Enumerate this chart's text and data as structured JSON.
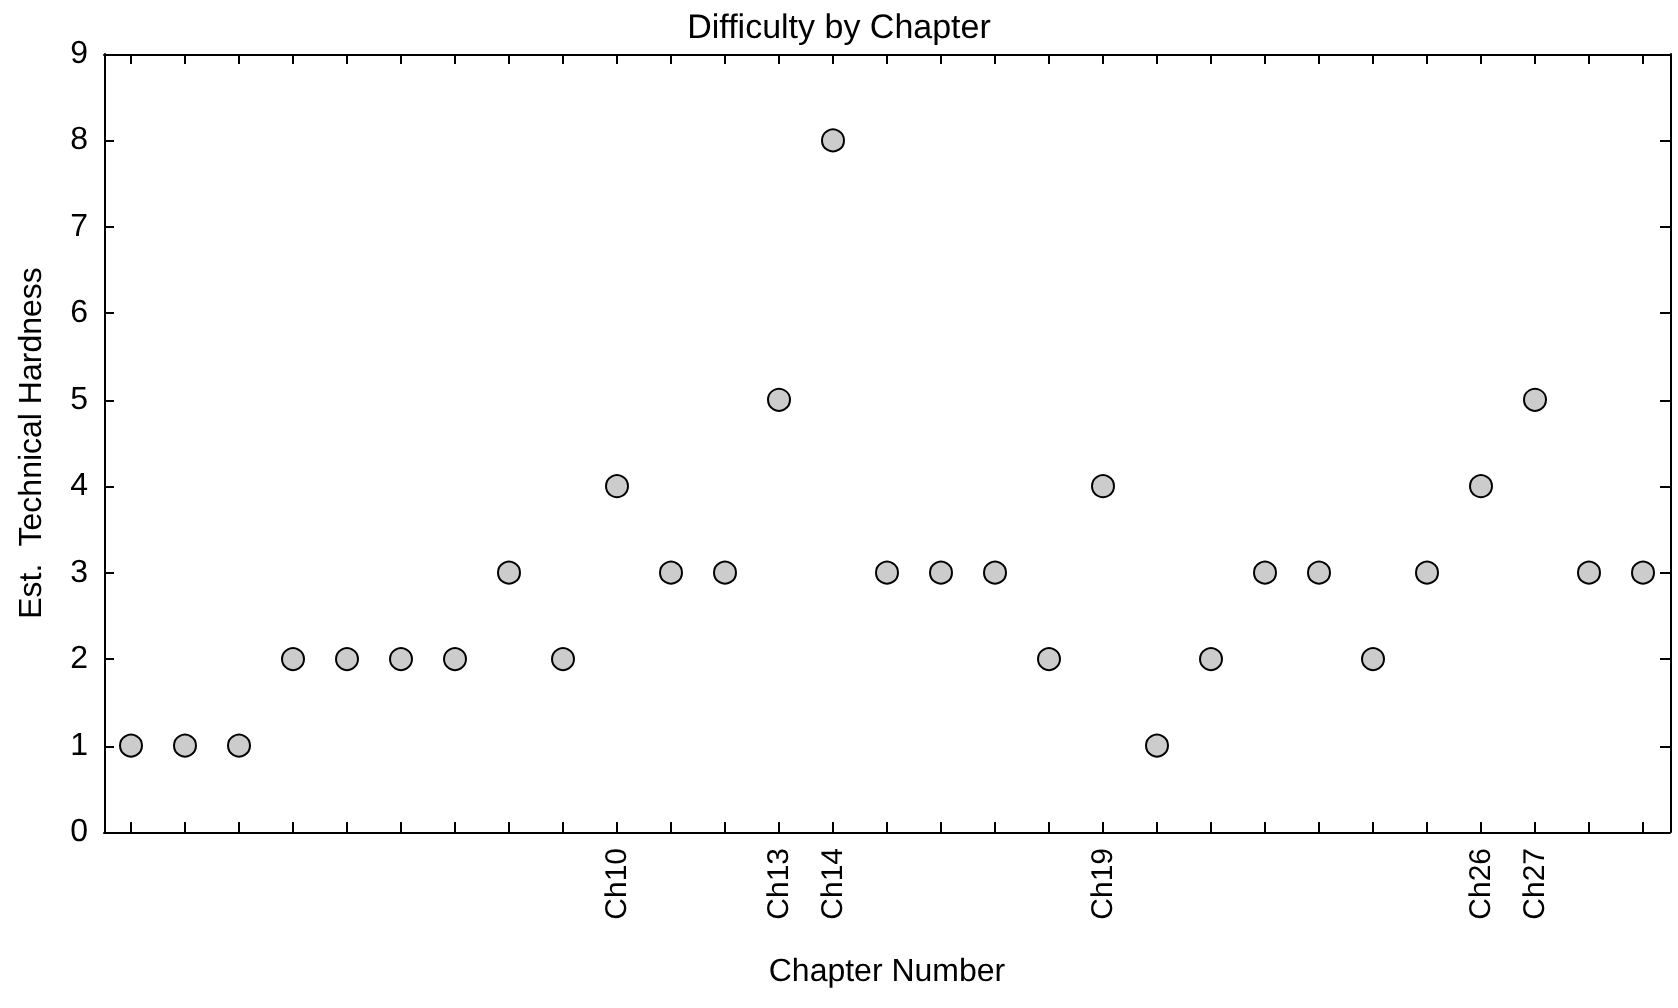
{
  "chart_data": {
    "type": "scatter",
    "title": "Difficulty by Chapter",
    "xlabel": "Chapter Number",
    "ylabel": "Est.  Technical Hardness",
    "categories": [
      null,
      null,
      null,
      null,
      null,
      null,
      null,
      null,
      null,
      "Ch10",
      null,
      null,
      "Ch13",
      "Ch14",
      null,
      null,
      null,
      null,
      "Ch19",
      null,
      null,
      null,
      null,
      null,
      null,
      "Ch26",
      "Ch27",
      null,
      null
    ],
    "series": [
      {
        "color": "#cccccc",
        "values": [
          1,
          1,
          1,
          2,
          2,
          2,
          2,
          3,
          2,
          4,
          3,
          3,
          5,
          8,
          3,
          3,
          3,
          2,
          4,
          1,
          2,
          3,
          3,
          2,
          3,
          4,
          5,
          3,
          3
        ]
      }
    ],
    "ylim": [
      0,
      9
    ],
    "yticks": [
      0,
      1,
      2,
      3,
      4,
      5,
      6,
      7,
      8,
      9
    ],
    "grid": false,
    "marker": "circle"
  }
}
